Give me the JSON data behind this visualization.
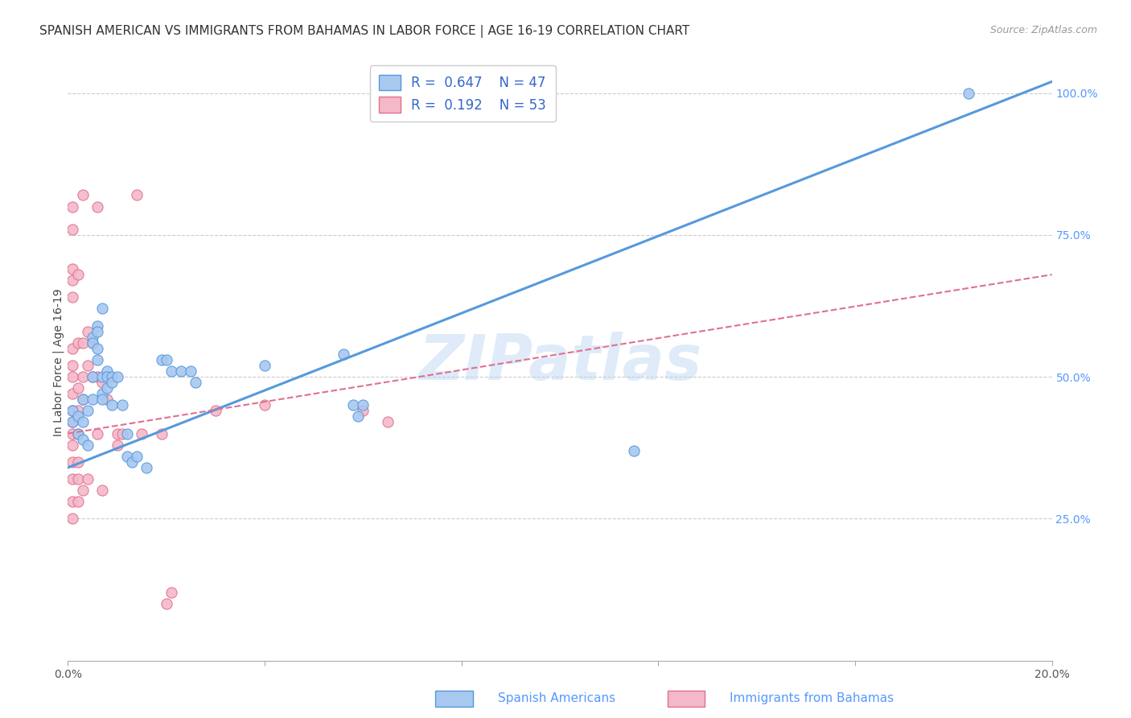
{
  "title": "SPANISH AMERICAN VS IMMIGRANTS FROM BAHAMAS IN LABOR FORCE | AGE 16-19 CORRELATION CHART",
  "source": "Source: ZipAtlas.com",
  "ylabel": "In Labor Force | Age 16-19",
  "xlim": [
    0.0,
    0.2
  ],
  "ylim": [
    0.0,
    1.05
  ],
  "yticks": [
    0.25,
    0.5,
    0.75,
    1.0
  ],
  "ytick_labels": [
    "25.0%",
    "50.0%",
    "75.0%",
    "100.0%"
  ],
  "xticks": [
    0.0,
    0.04,
    0.08,
    0.12,
    0.16,
    0.2
  ],
  "xtick_labels": [
    "0.0%",
    "",
    "",
    "",
    "",
    "20.0%"
  ],
  "blue_R": "0.647",
  "blue_N": "47",
  "pink_R": "0.192",
  "pink_N": "53",
  "blue_color": "#a8c8f0",
  "blue_line_color": "#5599dd",
  "pink_color": "#f4b8c8",
  "pink_line_color": "#e07090",
  "blue_line_x": [
    0.0,
    0.2
  ],
  "blue_line_y": [
    0.34,
    1.02
  ],
  "pink_line_x": [
    0.0,
    0.2
  ],
  "pink_line_y": [
    0.4,
    0.68
  ],
  "blue_scatter": [
    [
      0.001,
      0.44
    ],
    [
      0.001,
      0.42
    ],
    [
      0.002,
      0.43
    ],
    [
      0.002,
      0.4
    ],
    [
      0.003,
      0.46
    ],
    [
      0.003,
      0.42
    ],
    [
      0.003,
      0.39
    ],
    [
      0.004,
      0.44
    ],
    [
      0.004,
      0.38
    ],
    [
      0.005,
      0.57
    ],
    [
      0.005,
      0.56
    ],
    [
      0.005,
      0.5
    ],
    [
      0.005,
      0.46
    ],
    [
      0.006,
      0.59
    ],
    [
      0.006,
      0.58
    ],
    [
      0.006,
      0.55
    ],
    [
      0.006,
      0.53
    ],
    [
      0.007,
      0.62
    ],
    [
      0.007,
      0.5
    ],
    [
      0.007,
      0.47
    ],
    [
      0.007,
      0.46
    ],
    [
      0.008,
      0.51
    ],
    [
      0.008,
      0.5
    ],
    [
      0.008,
      0.48
    ],
    [
      0.009,
      0.5
    ],
    [
      0.009,
      0.49
    ],
    [
      0.009,
      0.45
    ],
    [
      0.01,
      0.5
    ],
    [
      0.011,
      0.45
    ],
    [
      0.012,
      0.4
    ],
    [
      0.012,
      0.36
    ],
    [
      0.013,
      0.35
    ],
    [
      0.014,
      0.36
    ],
    [
      0.016,
      0.34
    ],
    [
      0.019,
      0.53
    ],
    [
      0.02,
      0.53
    ],
    [
      0.021,
      0.51
    ],
    [
      0.023,
      0.51
    ],
    [
      0.025,
      0.51
    ],
    [
      0.026,
      0.49
    ],
    [
      0.04,
      0.52
    ],
    [
      0.056,
      0.54
    ],
    [
      0.058,
      0.45
    ],
    [
      0.059,
      0.43
    ],
    [
      0.06,
      0.45
    ],
    [
      0.115,
      0.37
    ],
    [
      0.183,
      1.0
    ]
  ],
  "pink_scatter": [
    [
      0.001,
      0.8
    ],
    [
      0.001,
      0.76
    ],
    [
      0.001,
      0.69
    ],
    [
      0.001,
      0.67
    ],
    [
      0.001,
      0.64
    ],
    [
      0.001,
      0.55
    ],
    [
      0.001,
      0.52
    ],
    [
      0.001,
      0.5
    ],
    [
      0.001,
      0.47
    ],
    [
      0.001,
      0.44
    ],
    [
      0.001,
      0.42
    ],
    [
      0.001,
      0.4
    ],
    [
      0.001,
      0.38
    ],
    [
      0.001,
      0.35
    ],
    [
      0.001,
      0.32
    ],
    [
      0.001,
      0.28
    ],
    [
      0.001,
      0.25
    ],
    [
      0.002,
      0.68
    ],
    [
      0.002,
      0.56
    ],
    [
      0.002,
      0.48
    ],
    [
      0.002,
      0.44
    ],
    [
      0.002,
      0.4
    ],
    [
      0.002,
      0.35
    ],
    [
      0.002,
      0.32
    ],
    [
      0.002,
      0.28
    ],
    [
      0.003,
      0.82
    ],
    [
      0.003,
      0.56
    ],
    [
      0.003,
      0.5
    ],
    [
      0.003,
      0.46
    ],
    [
      0.003,
      0.3
    ],
    [
      0.004,
      0.58
    ],
    [
      0.004,
      0.52
    ],
    [
      0.004,
      0.32
    ],
    [
      0.005,
      0.56
    ],
    [
      0.005,
      0.5
    ],
    [
      0.006,
      0.8
    ],
    [
      0.006,
      0.5
    ],
    [
      0.006,
      0.4
    ],
    [
      0.007,
      0.49
    ],
    [
      0.007,
      0.3
    ],
    [
      0.008,
      0.46
    ],
    [
      0.01,
      0.4
    ],
    [
      0.01,
      0.38
    ],
    [
      0.011,
      0.4
    ],
    [
      0.014,
      0.82
    ],
    [
      0.015,
      0.4
    ],
    [
      0.019,
      0.4
    ],
    [
      0.02,
      0.1
    ],
    [
      0.021,
      0.12
    ],
    [
      0.03,
      0.44
    ],
    [
      0.04,
      0.45
    ],
    [
      0.06,
      0.44
    ],
    [
      0.065,
      0.42
    ]
  ],
  "watermark": "ZIPatlas",
  "background_color": "#ffffff",
  "grid_color": "#cccccc"
}
